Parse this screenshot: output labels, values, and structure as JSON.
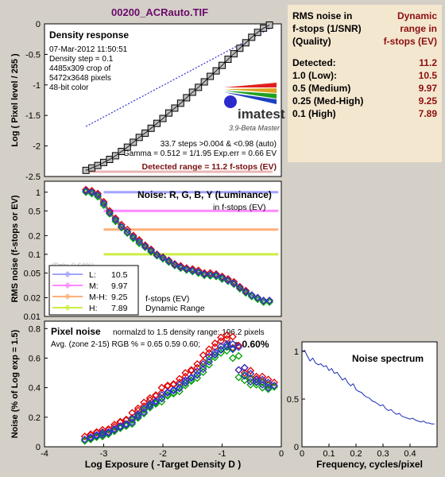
{
  "window_title": "00200_ACRauto.TIF",
  "results_table": {
    "header_left": [
      "RMS noise in",
      "f-stops (1/SNR)",
      "(Quality)"
    ],
    "header_right": [
      "Dynamic",
      "range in",
      "f-stops (EV)"
    ],
    "rows": [
      {
        "label": "Detected:",
        "value": "11.2"
      },
      {
        "label": "1.0  (Low):",
        "value": "10.5"
      },
      {
        "label": "0.5  (Medium)",
        "value": "9.97"
      },
      {
        "label": "0.25 (Med-High)",
        "value": "9.25"
      },
      {
        "label": "0.1  (High)",
        "value": "7.89"
      }
    ]
  },
  "density": {
    "title": "Density response",
    "date": "07-Mar-2012 11:50:51",
    "step": "Density step = 0.1",
    "crop": "4485x309 crop of",
    "pixels": "5472x3648 pixels",
    "color": "48-bit color",
    "logo": "imatest",
    "version": "3.9-Beta  Master",
    "steps_text": "33.7 steps >0.004 & <0.98 (auto)",
    "gamma_text": "Gamma = 0.512 = 1/1.95  Exp.err = 0.66 EV",
    "range_text": "Detected range = 11.2 f-stops (EV)",
    "ylabel": "Log ( Pixel level / 255 )",
    "yticks": [
      "0",
      "-0.5",
      "-1",
      "-1.5",
      "-2",
      "-2.5"
    ]
  },
  "noise_ev": {
    "title": "Noise: R, G, B, Y (Luminance)",
    "subtitle": "in f-stops (EV)",
    "ylabel": "RMS noise (f-stops or EV)",
    "yticks": [
      "1",
      "0.5",
      "0.2",
      "0.1",
      "0.05",
      "0.02",
      "0.01"
    ],
    "legend": [
      {
        "key": "L:",
        "value": "10.5",
        "color": "#a3a3ff"
      },
      {
        "key": "M:",
        "value": "9.97",
        "color": "#ff88ff"
      },
      {
        "key": "M-H:",
        "value": "9.25",
        "color": "#ffb07a"
      },
      {
        "key": "H:",
        "value": "7.89",
        "color": "#ccee44"
      }
    ],
    "caption1": "f-stops (EV)",
    "caption2": "Dynamic Range",
    "faded": "(Poly, 0.64%)"
  },
  "pixel_noise": {
    "title": "Pixel noise",
    "norm_text": "normalzd to 1.5 density range: 196.2 pixels",
    "avg_text": "Avg. (zone 2-15) RGB % = 0.65  0.59  0.60;",
    "y_text": "Y = 0.60%",
    "ylabel": "Noise (% of Log exp = 1.5)",
    "xlabel": "Log Exposure ( -Target Density D )",
    "yticks": [
      "0.8",
      "0.6",
      "0.4",
      "0.2",
      "0"
    ],
    "xticks": [
      "-4",
      "-3",
      "-2",
      "-1",
      "0"
    ]
  },
  "spectrum": {
    "title": "Noise spectrum",
    "xlabel": "Frequency, cycles/pixel",
    "yticks": [
      "1",
      "0.5",
      "0"
    ],
    "xticks": [
      "0",
      "0.1",
      "0.2",
      "0.3",
      "0.4"
    ]
  },
  "colors": {
    "background": "#d4d0c8",
    "panel": "#ffffff",
    "accent": "#7a0f0f",
    "table_bg": "#f4e7cf"
  },
  "chart_data": [
    {
      "type": "scatter",
      "title": "Density response",
      "ylabel": "Log ( Pixel level / 255 )",
      "ylim": [
        -2.5,
        0
      ],
      "x": [
        -3.3,
        -3.2,
        -3.1,
        -3.0,
        -2.9,
        -2.8,
        -2.7,
        -2.6,
        -2.5,
        -2.4,
        -2.3,
        -2.2,
        -2.1,
        -2.0,
        -1.9,
        -1.8,
        -1.7,
        -1.6,
        -1.5,
        -1.4,
        -1.3,
        -1.2,
        -1.1,
        -1.0,
        -0.9,
        -0.8,
        -0.7,
        -0.6,
        -0.5,
        -0.4,
        -0.3,
        -0.2
      ],
      "values": [
        -2.4,
        -2.36,
        -2.32,
        -2.27,
        -2.22,
        -2.16,
        -2.09,
        -2.02,
        -1.94,
        -1.86,
        -1.79,
        -1.71,
        -1.63,
        -1.55,
        -1.46,
        -1.38,
        -1.3,
        -1.21,
        -1.12,
        -1.04,
        -0.95,
        -0.86,
        -0.77,
        -0.68,
        -0.58,
        -0.49,
        -0.4,
        -0.31,
        -0.22,
        -0.14,
        -0.07,
        -0.02
      ],
      "fit_line": {
        "x": [
          -3.3,
          -0.2
        ],
        "y": [
          -1.68,
          -0.08
        ]
      },
      "xlim": [
        -4,
        0
      ]
    },
    {
      "type": "scatter",
      "title": "Noise: R, G, B, Y (Luminance)",
      "ylabel": "RMS noise (f-stops or EV)",
      "scale": "log",
      "ylim": [
        0.01,
        1.5
      ],
      "xlim": [
        -4,
        0
      ],
      "x": [
        -3.3,
        -3.2,
        -3.1,
        -3.0,
        -2.9,
        -2.8,
        -2.7,
        -2.6,
        -2.5,
        -2.4,
        -2.3,
        -2.2,
        -2.1,
        -2.0,
        -1.9,
        -1.8,
        -1.7,
        -1.6,
        -1.5,
        -1.4,
        -1.3,
        -1.2,
        -1.1,
        -1.0,
        -0.9,
        -0.8,
        -0.7,
        -0.6,
        -0.5,
        -0.4,
        -0.3,
        -0.2
      ],
      "series": [
        {
          "color": "#e00000",
          "values": [
            1.1,
            1.05,
            0.95,
            0.7,
            0.5,
            0.38,
            0.3,
            0.25,
            0.2,
            0.17,
            0.14,
            0.12,
            0.1,
            0.09,
            0.08,
            0.07,
            0.065,
            0.06,
            0.058,
            0.055,
            0.05,
            0.05,
            0.048,
            0.044,
            0.04,
            0.036,
            0.03,
            0.026,
            0.022,
            0.02,
            0.018,
            0.018
          ]
        },
        {
          "color": "#00a000",
          "values": [
            1.0,
            0.95,
            0.85,
            0.62,
            0.45,
            0.34,
            0.27,
            0.22,
            0.18,
            0.15,
            0.13,
            0.11,
            0.095,
            0.085,
            0.075,
            0.066,
            0.06,
            0.056,
            0.053,
            0.05,
            0.046,
            0.045,
            0.044,
            0.04,
            0.037,
            0.033,
            0.028,
            0.024,
            0.021,
            0.019,
            0.017,
            0.017
          ]
        },
        {
          "color": "#3030d0",
          "values": [
            1.05,
            1.0,
            0.9,
            0.66,
            0.47,
            0.36,
            0.28,
            0.23,
            0.19,
            0.16,
            0.135,
            0.115,
            0.098,
            0.088,
            0.078,
            0.068,
            0.062,
            0.058,
            0.055,
            0.052,
            0.048,
            0.047,
            0.046,
            0.042,
            0.038,
            0.034,
            0.029,
            0.025,
            0.022,
            0.02,
            0.018,
            0.018
          ]
        }
      ],
      "reference_lines": [
        {
          "level": 1.0,
          "color": "#a3a3ff"
        },
        {
          "level": 0.5,
          "color": "#ff88ff"
        },
        {
          "level": 0.25,
          "color": "#ffb07a"
        },
        {
          "level": 0.1,
          "color": "#ccee44"
        }
      ]
    },
    {
      "type": "scatter",
      "title": "Pixel noise",
      "ylabel": "Noise (% of Log exp = 1.5)",
      "xlabel": "Log Exposure ( -Target Density D )",
      "ylim": [
        0,
        0.8
      ],
      "xlim": [
        -4,
        0
      ],
      "x": [
        -3.3,
        -3.2,
        -3.1,
        -3.0,
        -2.9,
        -2.8,
        -2.7,
        -2.6,
        -2.5,
        -2.4,
        -2.3,
        -2.2,
        -2.1,
        -2.0,
        -1.9,
        -1.8,
        -1.7,
        -1.6,
        -1.5,
        -1.4,
        -1.3,
        -1.2,
        -1.1,
        -1.0,
        -0.9,
        -0.8,
        -0.7,
        -0.6,
        -0.5,
        -0.4,
        -0.3,
        -0.2
      ],
      "series": [
        {
          "color": "#e00000",
          "values": [
            0.07,
            0.08,
            0.1,
            0.1,
            0.12,
            0.15,
            0.17,
            0.18,
            0.23,
            0.26,
            0.3,
            0.33,
            0.35,
            0.4,
            0.41,
            0.42,
            0.46,
            0.5,
            0.52,
            0.56,
            0.62,
            0.66,
            0.7,
            0.74,
            0.73,
            0.67,
            0.52,
            0.5,
            0.46,
            0.46,
            0.44,
            0.42
          ]
        },
        {
          "color": "#00a000",
          "values": [
            0.04,
            0.05,
            0.07,
            0.07,
            0.09,
            0.11,
            0.13,
            0.14,
            0.18,
            0.21,
            0.25,
            0.28,
            0.29,
            0.33,
            0.35,
            0.36,
            0.4,
            0.43,
            0.45,
            0.49,
            0.54,
            0.59,
            0.62,
            0.66,
            0.65,
            0.6,
            0.47,
            0.45,
            0.42,
            0.42,
            0.4,
            0.39
          ]
        },
        {
          "color": "#3030d0",
          "values": [
            0.05,
            0.06,
            0.08,
            0.08,
            0.1,
            0.12,
            0.14,
            0.15,
            0.19,
            0.22,
            0.26,
            0.29,
            0.31,
            0.35,
            0.37,
            0.38,
            0.42,
            0.45,
            0.47,
            0.51,
            0.56,
            0.61,
            0.64,
            0.68,
            0.68,
            0.66,
            0.52,
            0.48,
            0.44,
            0.44,
            0.42,
            0.4
          ]
        }
      ]
    },
    {
      "type": "line",
      "title": "Noise spectrum",
      "xlabel": "Frequency, cycles/pixel",
      "ylim": [
        0,
        1.1
      ],
      "xlim": [
        0,
        0.5
      ],
      "x": [
        0,
        0.01,
        0.02,
        0.03,
        0.04,
        0.05,
        0.06,
        0.07,
        0.08,
        0.09,
        0.1,
        0.11,
        0.12,
        0.13,
        0.14,
        0.15,
        0.16,
        0.17,
        0.18,
        0.19,
        0.2,
        0.21,
        0.22,
        0.23,
        0.24,
        0.25,
        0.26,
        0.27,
        0.28,
        0.29,
        0.3,
        0.31,
        0.32,
        0.33,
        0.34,
        0.35,
        0.36,
        0.37,
        0.38,
        0.39,
        0.4,
        0.41,
        0.42,
        0.43,
        0.44,
        0.45,
        0.46,
        0.47,
        0.48,
        0.49
      ],
      "values": [
        1.0,
        1.01,
        0.95,
        0.9,
        0.93,
        0.88,
        0.86,
        0.87,
        0.84,
        0.85,
        0.8,
        0.82,
        0.77,
        0.78,
        0.74,
        0.7,
        0.72,
        0.67,
        0.64,
        0.66,
        0.6,
        0.58,
        0.57,
        0.54,
        0.52,
        0.51,
        0.48,
        0.47,
        0.45,
        0.43,
        0.44,
        0.4,
        0.38,
        0.39,
        0.36,
        0.34,
        0.35,
        0.32,
        0.31,
        0.3,
        0.29,
        0.3,
        0.28,
        0.27,
        0.26,
        0.27,
        0.25,
        0.25,
        0.24,
        0.24
      ]
    }
  ]
}
